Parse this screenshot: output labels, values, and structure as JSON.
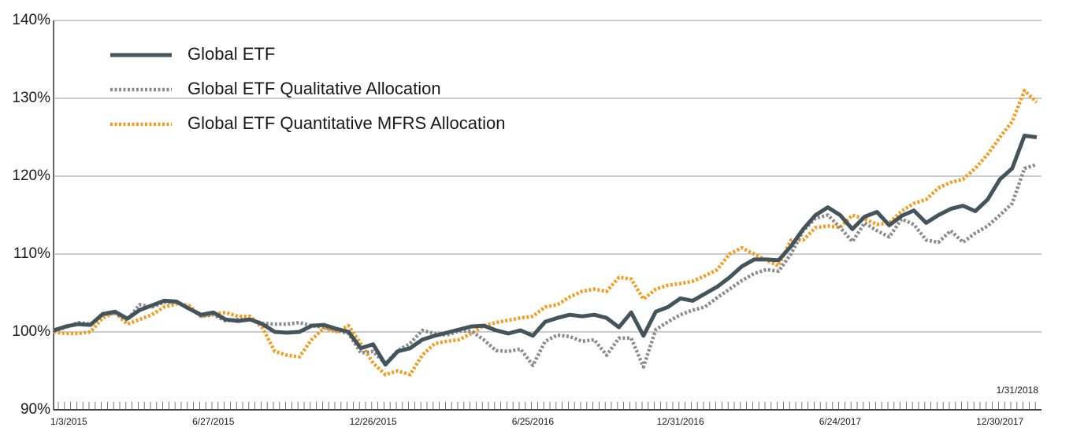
{
  "chart_data": {
    "type": "line",
    "categories": [
      "1/3/2015",
      null,
      null,
      null,
      null,
      null,
      null,
      null,
      null,
      null,
      null,
      null,
      null,
      "6/27/2015",
      null,
      null,
      null,
      null,
      null,
      null,
      null,
      null,
      null,
      null,
      null,
      null,
      "12/26/2015",
      null,
      null,
      null,
      null,
      null,
      null,
      null,
      null,
      null,
      null,
      null,
      null,
      "6/25/2016",
      null,
      null,
      null,
      null,
      null,
      null,
      null,
      null,
      null,
      null,
      null,
      "12/31/2016",
      null,
      null,
      null,
      null,
      null,
      null,
      null,
      null,
      null,
      null,
      null,
      null,
      "6/24/2017",
      null,
      null,
      null,
      null,
      null,
      null,
      null,
      null,
      null,
      null,
      null,
      null,
      "12/30/2017",
      null,
      null,
      "1/31/2018"
    ],
    "series": [
      {
        "name": "Global ETF",
        "color": "#44545c",
        "style": "solid",
        "values": [
          100.2,
          100.7,
          101,
          100.9,
          102.3,
          102.6,
          101.7,
          102.8,
          103.4,
          104,
          103.9,
          103,
          102.2,
          102.5,
          101.6,
          101.4,
          101.6,
          101,
          100,
          99.9,
          100,
          100.8,
          100.9,
          100.4,
          100,
          97.9,
          98.4,
          95.8,
          97.5,
          97.9,
          99,
          99.5,
          99.9,
          100.3,
          100.7,
          100.8,
          100.2,
          99.8,
          100.2,
          99.5,
          101.3,
          101.8,
          102.2,
          102,
          102.2,
          101.8,
          100.6,
          102.5,
          99.5,
          102.6,
          103.2,
          104.3,
          104,
          104.9,
          105.8,
          107,
          108.4,
          109.3,
          109.3,
          109.2,
          111,
          113.2,
          115,
          116,
          115,
          113.2,
          114.8,
          115.4,
          113.7,
          114.9,
          115.6,
          114,
          115,
          115.8,
          116.2,
          115.5,
          117,
          119.6,
          121,
          125.2,
          125
        ]
      },
      {
        "name": "Global ETF Qualitative Allocation",
        "color": "#8c8c8c",
        "style": "dotted",
        "values": [
          100.1,
          100.6,
          101.2,
          101,
          102.2,
          102.4,
          101.5,
          103.5,
          103.2,
          103.8,
          103.8,
          103.1,
          102,
          102.2,
          101.4,
          101.6,
          101.6,
          101.1,
          101,
          101,
          101.2,
          100.8,
          100.6,
          100.2,
          99.8,
          97.3,
          97.5,
          95.9,
          97.6,
          98.5,
          100.2,
          99.8,
          99.6,
          100.1,
          100.1,
          99,
          97.6,
          97.5,
          97.8,
          95.7,
          98.8,
          99.6,
          99.4,
          98.8,
          99,
          97,
          99.2,
          99.2,
          95.5,
          100.3,
          101.3,
          102.2,
          102.8,
          103.2,
          104.4,
          105.5,
          106.6,
          107.5,
          108,
          107.8,
          110,
          113,
          114.6,
          115,
          113.4,
          111.6,
          114,
          113,
          112.2,
          114.5,
          113.8,
          111.8,
          111.5,
          113,
          111.5,
          112.7,
          113.6,
          115,
          116.5,
          121,
          121.5
        ]
      },
      {
        "name": "Global ETF Quantitative MFRS Allocation",
        "color": "#f39c1f",
        "style": "dotted",
        "values": [
          100,
          99.8,
          99.8,
          100,
          101.8,
          102.5,
          101,
          101.6,
          102.2,
          103.2,
          103.6,
          103.4,
          102,
          102.3,
          102.5,
          102,
          102,
          100.5,
          97.5,
          97,
          96.8,
          99,
          100.5,
          100,
          100.8,
          98.5,
          96,
          94.5,
          95,
          94.5,
          97,
          98.5,
          98.8,
          99,
          99.8,
          100.8,
          101.2,
          101.5,
          101.8,
          102,
          103.2,
          103.5,
          104.5,
          105.2,
          105.5,
          105.2,
          107,
          106.8,
          104.2,
          105.5,
          106,
          106.2,
          106.5,
          107.2,
          108,
          110,
          110.8,
          110,
          109.2,
          108.5,
          111.8,
          111.8,
          113.4,
          113.6,
          113.4,
          115,
          114.5,
          113.8,
          114,
          115.5,
          116.5,
          117,
          118.5,
          119.2,
          119.6,
          121,
          122.8,
          125,
          127,
          131,
          129.5
        ]
      }
    ],
    "ylim": [
      90,
      140
    ],
    "yticks": [
      {
        "value": 90,
        "label": "90%"
      },
      {
        "value": 100,
        "label": "100%"
      },
      {
        "value": 110,
        "label": "110%"
      },
      {
        "value": 120,
        "label": "120%"
      },
      {
        "value": 130,
        "label": "130%"
      },
      {
        "value": 140,
        "label": "140%"
      }
    ],
    "grid": true,
    "legend": "top-left"
  }
}
